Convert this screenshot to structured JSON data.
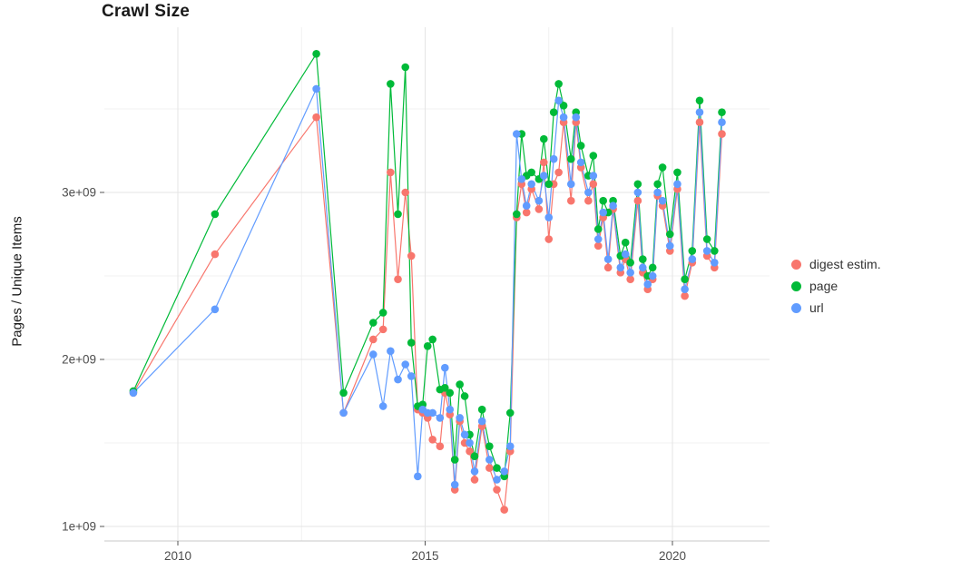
{
  "chart_data": {
    "type": "line",
    "title": "Crawl Size",
    "xlabel": "",
    "ylabel": "Pages / Unique Items",
    "legend_position": "right",
    "grid": true,
    "values_scale": 1000000000,
    "xlim": [
      2008.5,
      2022.0
    ],
    "ylim_billions": [
      0.91,
      4.08
    ],
    "x_ticks": [
      {
        "value": 2010,
        "label": "2010"
      },
      {
        "value": 2015,
        "label": "2015"
      },
      {
        "value": 2020,
        "label": "2020"
      }
    ],
    "y_ticks": [
      {
        "value": 1,
        "label": "1e+09"
      },
      {
        "value": 2,
        "label": "2e+09"
      },
      {
        "value": 3,
        "label": "3e+09"
      }
    ],
    "x_minor": [
      2012.5,
      2017.5
    ],
    "y_minor": [
      1.5,
      2.5,
      3.5
    ],
    "x": [
      2009.1,
      2010.75,
      2012.8,
      2013.35,
      2013.95,
      2014.15,
      2014.3,
      2014.45,
      2014.6,
      2014.72,
      2014.85,
      2014.95,
      2015.05,
      2015.15,
      2015.3,
      2015.4,
      2015.5,
      2015.6,
      2015.7,
      2015.8,
      2015.9,
      2016.0,
      2016.15,
      2016.3,
      2016.45,
      2016.6,
      2016.72,
      2016.85,
      2016.95,
      2017.05,
      2017.15,
      2017.3,
      2017.4,
      2017.5,
      2017.6,
      2017.7,
      2017.8,
      2017.95,
      2018.05,
      2018.15,
      2018.3,
      2018.4,
      2018.5,
      2018.6,
      2018.7,
      2018.8,
      2018.95,
      2019.05,
      2019.15,
      2019.3,
      2019.4,
      2019.5,
      2019.6,
      2019.7,
      2019.8,
      2019.95,
      2020.1,
      2020.25,
      2020.4,
      2020.55,
      2020.7,
      2020.85,
      2021.0
    ],
    "series": [
      {
        "name": "digest estim.",
        "color": "#F8766D",
        "values_billions": [
          1.8,
          2.63,
          3.45,
          1.68,
          2.12,
          2.18,
          3.12,
          2.48,
          3.0,
          2.62,
          1.7,
          1.68,
          1.65,
          1.52,
          1.48,
          1.8,
          1.67,
          1.22,
          1.63,
          1.5,
          1.45,
          1.28,
          1.6,
          1.35,
          1.22,
          1.1,
          1.45,
          2.85,
          3.05,
          2.88,
          3.02,
          2.9,
          3.18,
          2.72,
          3.05,
          3.12,
          3.42,
          2.95,
          3.42,
          3.15,
          2.95,
          3.05,
          2.68,
          2.85,
          2.55,
          2.9,
          2.52,
          2.6,
          2.48,
          2.95,
          2.52,
          2.42,
          2.48,
          2.98,
          2.92,
          2.65,
          3.02,
          2.38,
          2.58,
          3.42,
          2.62,
          2.55,
          3.35
        ]
      },
      {
        "name": "page",
        "color": "#00BA38",
        "values_billions": [
          1.81,
          2.87,
          3.83,
          1.8,
          2.22,
          2.28,
          3.65,
          2.87,
          3.75,
          2.1,
          1.72,
          1.73,
          2.08,
          2.12,
          1.82,
          1.83,
          1.8,
          1.4,
          1.85,
          1.78,
          1.55,
          1.42,
          1.7,
          1.48,
          1.35,
          1.3,
          1.68,
          2.87,
          3.35,
          3.1,
          3.12,
          3.08,
          3.32,
          3.05,
          3.48,
          3.65,
          3.52,
          3.2,
          3.48,
          3.28,
          3.1,
          3.22,
          2.78,
          2.95,
          2.88,
          2.95,
          2.62,
          2.7,
          2.58,
          3.05,
          2.6,
          2.5,
          2.55,
          3.05,
          3.15,
          2.75,
          3.12,
          2.48,
          2.65,
          3.55,
          2.72,
          2.65,
          3.48
        ]
      },
      {
        "name": "url",
        "color": "#619CFF",
        "values_billions": [
          1.8,
          2.3,
          3.62,
          1.68,
          2.03,
          1.72,
          2.05,
          1.88,
          1.97,
          1.9,
          1.3,
          1.7,
          1.68,
          1.68,
          1.65,
          1.95,
          1.7,
          1.25,
          1.65,
          1.55,
          1.5,
          1.33,
          1.63,
          1.4,
          1.28,
          1.33,
          1.48,
          3.35,
          3.08,
          2.92,
          3.05,
          2.95,
          3.1,
          2.85,
          3.2,
          3.55,
          3.45,
          3.05,
          3.45,
          3.18,
          3.0,
          3.1,
          2.72,
          2.88,
          2.6,
          2.92,
          2.55,
          2.63,
          2.52,
          3.0,
          2.55,
          2.45,
          2.5,
          3.0,
          2.95,
          2.68,
          3.05,
          2.42,
          2.6,
          3.48,
          2.65,
          2.58,
          3.42
        ]
      }
    ]
  }
}
